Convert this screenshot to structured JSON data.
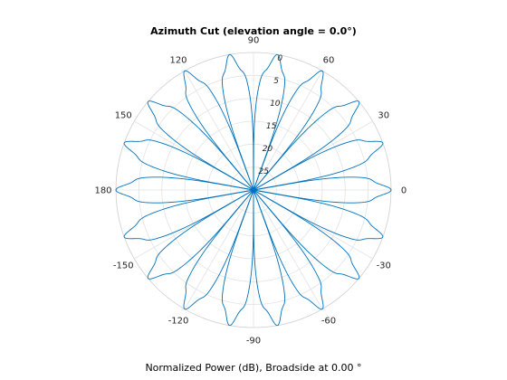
{
  "chart_data": {
    "type": "polar-line",
    "title": "Azimuth Cut (elevation angle = 0.0°)",
    "xlabel": "Normalized Power (dB), Broadside at 0.00 °",
    "angle_ticks": [
      "0",
      "30",
      "60",
      "90",
      "120",
      "150",
      "180",
      "-150",
      "-120",
      "-90",
      "-60",
      "-30"
    ],
    "angle_tick_values_deg": [
      0,
      30,
      60,
      90,
      120,
      150,
      180,
      -150,
      -120,
      -90,
      -60,
      -30
    ],
    "r_ticks": [
      "0",
      "5",
      "10",
      "15",
      "20",
      "25"
    ],
    "r_tick_values_db": [
      0,
      -5,
      -10,
      -15,
      -20,
      -25
    ],
    "r_range_db": [
      -30,
      0
    ],
    "series": [
      {
        "lobe_count": 18,
        "lobe_centers_deg": [
          0,
          20,
          40,
          60,
          80,
          100,
          120,
          140,
          160,
          180,
          -160,
          -140,
          -120,
          -100,
          -80,
          -60,
          -40,
          -20
        ],
        "peak_db": 0,
        "null_db": -30,
        "color": "#0072bd"
      }
    ]
  }
}
